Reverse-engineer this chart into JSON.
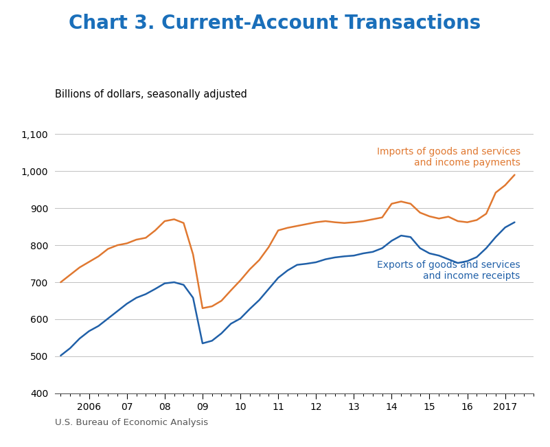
{
  "title": "Chart 3. Current-Account Transactions",
  "subtitle": "Billions of dollars, seasonally adjusted",
  "source": "U.S. Bureau of Economic Analysis",
  "title_color": "#1a6fba",
  "imports_color": "#e07830",
  "exports_color": "#2060a8",
  "imports_label": "Imports of goods and services\nand income payments",
  "exports_label": "Exports of goods and services\nand income receipts",
  "ylim": [
    400,
    1100
  ],
  "yticks": [
    400,
    500,
    600,
    700,
    800,
    900,
    1000,
    1100
  ],
  "background_color": "#ffffff",
  "imports_x": [
    2005.25,
    2005.5,
    2005.75,
    2006.0,
    2006.25,
    2006.5,
    2006.75,
    2007.0,
    2007.25,
    2007.5,
    2007.75,
    2008.0,
    2008.25,
    2008.5,
    2008.75,
    2009.0,
    2009.25,
    2009.5,
    2009.75,
    2010.0,
    2010.25,
    2010.5,
    2010.75,
    2011.0,
    2011.25,
    2011.5,
    2011.75,
    2012.0,
    2012.25,
    2012.5,
    2012.75,
    2013.0,
    2013.25,
    2013.5,
    2013.75,
    2014.0,
    2014.25,
    2014.5,
    2014.75,
    2015.0,
    2015.25,
    2015.5,
    2015.75,
    2016.0,
    2016.25,
    2016.5,
    2016.75,
    2017.0,
    2017.25
  ],
  "imports_y": [
    700,
    720,
    740,
    755,
    770,
    790,
    800,
    805,
    815,
    820,
    840,
    865,
    870,
    860,
    775,
    630,
    635,
    650,
    678,
    705,
    735,
    760,
    795,
    840,
    847,
    852,
    857,
    862,
    865,
    862,
    860,
    862,
    865,
    870,
    875,
    912,
    918,
    912,
    888,
    878,
    872,
    877,
    865,
    862,
    868,
    885,
    942,
    962,
    990
  ],
  "exports_x": [
    2005.25,
    2005.5,
    2005.75,
    2006.0,
    2006.25,
    2006.5,
    2006.75,
    2007.0,
    2007.25,
    2007.5,
    2007.75,
    2008.0,
    2008.25,
    2008.5,
    2008.75,
    2009.0,
    2009.25,
    2009.5,
    2009.75,
    2010.0,
    2010.25,
    2010.5,
    2010.75,
    2011.0,
    2011.25,
    2011.5,
    2011.75,
    2012.0,
    2012.25,
    2012.5,
    2012.75,
    2013.0,
    2013.25,
    2013.5,
    2013.75,
    2014.0,
    2014.25,
    2014.5,
    2014.75,
    2015.0,
    2015.25,
    2015.5,
    2015.75,
    2016.0,
    2016.25,
    2016.5,
    2016.75,
    2017.0,
    2017.25
  ],
  "exports_y": [
    502,
    522,
    548,
    568,
    582,
    602,
    622,
    642,
    658,
    668,
    682,
    697,
    700,
    693,
    658,
    535,
    542,
    562,
    588,
    602,
    628,
    652,
    682,
    712,
    732,
    747,
    750,
    754,
    762,
    767,
    770,
    772,
    778,
    782,
    792,
    812,
    826,
    822,
    792,
    778,
    772,
    762,
    752,
    757,
    768,
    792,
    822,
    848,
    862
  ]
}
